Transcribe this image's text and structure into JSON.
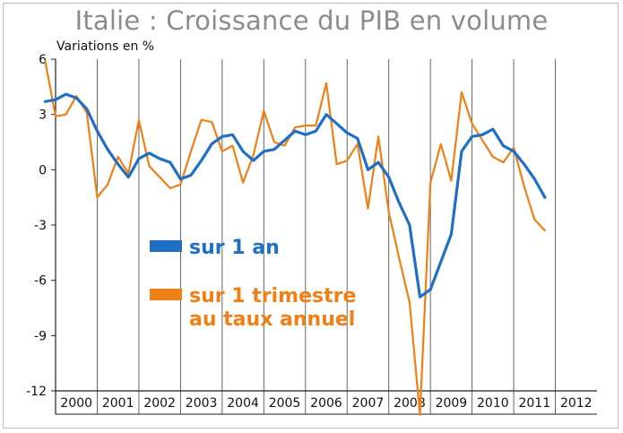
{
  "chart_data": {
    "type": "line",
    "title": "Italie : Croissance du PIB en volume",
    "ylabel": "Variations en %",
    "xlabel": "",
    "ylim": [
      -12,
      6
    ],
    "yticks": [
      6,
      3,
      0,
      -3,
      -6,
      -9,
      -12
    ],
    "ytick_labels": [
      "6",
      "3",
      "0",
      "-3",
      "-6",
      "-9",
      "-12"
    ],
    "xlim": [
      2000,
      2013
    ],
    "year_labels": [
      "2000",
      "2001",
      "2002",
      "2003",
      "2004",
      "2005",
      "2006",
      "2007",
      "2008",
      "2009",
      "2010",
      "2011",
      "2012"
    ],
    "grid": "vertical",
    "legend_placement": "center-left",
    "series": [
      {
        "name": "sur 1 an",
        "color": "#1f6fc5",
        "x": [
          1999.75,
          2000.0,
          2000.25,
          2000.5,
          2000.75,
          2001.0,
          2001.25,
          2001.5,
          2001.75,
          2002.0,
          2002.25,
          2002.5,
          2002.75,
          2003.0,
          2003.25,
          2003.5,
          2003.75,
          2004.0,
          2004.25,
          2004.5,
          2004.75,
          2005.0,
          2005.25,
          2005.5,
          2005.75,
          2006.0,
          2006.25,
          2006.5,
          2006.75,
          2007.0,
          2007.25,
          2007.5,
          2007.75,
          2008.0,
          2008.25,
          2008.5,
          2008.75,
          2009.0,
          2009.25,
          2009.5,
          2009.75,
          2010.0,
          2010.25,
          2010.5,
          2010.75,
          2011.0,
          2011.25,
          2011.5,
          2011.75
        ],
        "values": [
          3.7,
          3.8,
          4.1,
          3.9,
          3.3,
          2.1,
          1.1,
          0.3,
          -0.4,
          0.6,
          0.9,
          0.6,
          0.4,
          -0.5,
          -0.3,
          0.5,
          1.4,
          1.8,
          1.9,
          1.0,
          0.5,
          1.0,
          1.1,
          1.6,
          2.1,
          1.9,
          2.1,
          3.0,
          2.5,
          2.0,
          1.7,
          0.0,
          0.4,
          -0.4,
          -1.8,
          -3.0,
          -6.9,
          -6.5,
          -5.0,
          -3.5,
          1.0,
          1.8,
          1.9,
          2.2,
          1.3,
          1.0,
          0.3,
          -0.5,
          -1.5
        ]
      },
      {
        "name": "sur 1 trimestre au taux annuel",
        "name_lines": [
          "sur 1 trimestre",
          "au taux annuel"
        ],
        "color": "#f07f14",
        "x": [
          1999.75,
          2000.0,
          2000.25,
          2000.5,
          2000.75,
          2001.0,
          2001.25,
          2001.5,
          2001.75,
          2002.0,
          2002.25,
          2002.5,
          2002.75,
          2003.0,
          2003.25,
          2003.5,
          2003.75,
          2004.0,
          2004.25,
          2004.5,
          2004.75,
          2005.0,
          2005.25,
          2005.5,
          2005.75,
          2006.0,
          2006.25,
          2006.5,
          2006.75,
          2007.0,
          2007.25,
          2007.5,
          2007.75,
          2008.0,
          2008.25,
          2008.5,
          2008.75,
          2009.0,
          2009.25,
          2009.5,
          2009.75,
          2010.0,
          2010.25,
          2010.5,
          2010.75,
          2011.0,
          2011.25,
          2011.5,
          2011.75
        ],
        "values": [
          5.9,
          2.9,
          3.0,
          4.0,
          3.1,
          -1.5,
          -0.8,
          0.7,
          -0.2,
          2.7,
          0.2,
          -0.4,
          -1.0,
          -0.8,
          1.0,
          2.7,
          2.6,
          1.0,
          1.3,
          -0.7,
          0.8,
          3.2,
          1.5,
          1.3,
          2.3,
          2.4,
          2.4,
          4.7,
          0.3,
          0.5,
          1.4,
          -2.1,
          1.8,
          -2.3,
          -4.8,
          -7.2,
          -13.3,
          -0.7,
          1.4,
          -0.6,
          4.2,
          2.5,
          1.6,
          0.7,
          0.4,
          1.2,
          -0.9,
          -2.7,
          -3.3
        ]
      }
    ]
  }
}
